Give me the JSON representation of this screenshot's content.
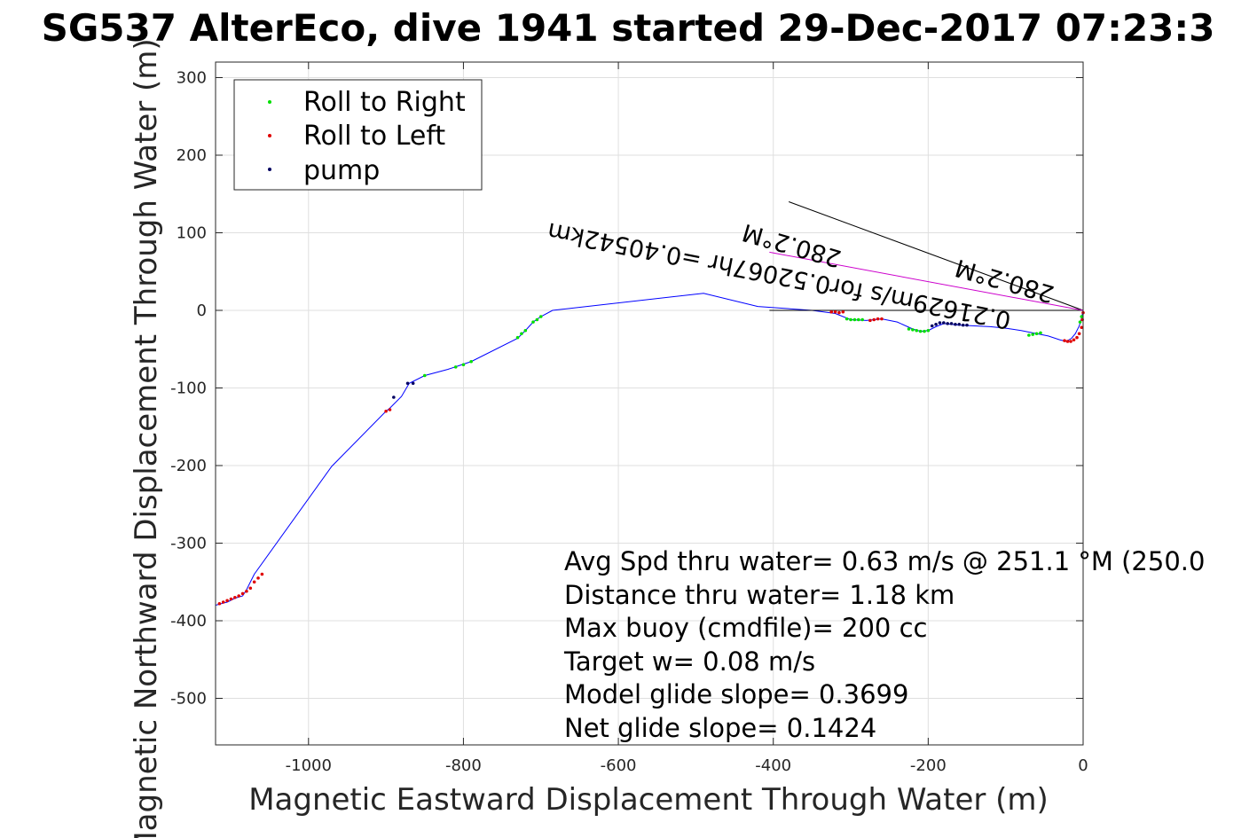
{
  "chart_data": {
    "type": "scatter",
    "title": "SG537 AlterEco, dive 1941 started 29-Dec-2017 07:23:3",
    "xlabel": "Magnetic Eastward Displacement Through Water (m)",
    "ylabel": "Magnetic Northward Displacement Through Water (m)",
    "xlim": [
      -1120,
      0
    ],
    "ylim": [
      -560,
      320
    ],
    "xticks": [
      "-1000",
      "-800",
      "-600",
      "-400",
      "-200",
      "0"
    ],
    "xtick_values": [
      -1000,
      -800,
      -600,
      -400,
      -200,
      0
    ],
    "yticks": [
      "300",
      "200",
      "100",
      "0",
      "-100",
      "-200",
      "-300",
      "-400",
      "-500"
    ],
    "ytick_values": [
      300,
      200,
      100,
      0,
      -100,
      -200,
      -300,
      -400,
      -500
    ],
    "grid": true,
    "legend_position": "top-left",
    "colors": {
      "track": "#0000ff",
      "roll_right": "#00e000",
      "roll_left": "#e00000",
      "pump": "#000060",
      "heading_line": "#cc00cc",
      "vector": "#000000"
    },
    "track": {
      "x": [
        0,
        -2,
        -5,
        -10,
        -15,
        -22,
        -30,
        -45,
        -60,
        -80,
        -100,
        -120,
        -140,
        -160,
        -180,
        -190,
        -200,
        -210,
        -220,
        -240,
        -260,
        -280,
        -300,
        -320,
        -350,
        -420,
        -490,
        -685,
        -700,
        -710,
        -720,
        -730,
        -790,
        -805,
        -820,
        -850,
        -870,
        -880,
        -895,
        -900,
        -970,
        -1070,
        -1075,
        -1080,
        -1085,
        -1095,
        -1105,
        -1120
      ],
      "y": [
        0,
        -10,
        -20,
        -30,
        -36,
        -40,
        -38,
        -33,
        -30,
        -26,
        -23,
        -21,
        -20,
        -19,
        -17,
        -21,
        -26,
        -27,
        -24,
        -15,
        -11,
        -13,
        -12,
        -4,
        0,
        5,
        22,
        0,
        -8,
        -15,
        -26,
        -36,
        -66,
        -71,
        -76,
        -84,
        -94,
        -111,
        -126,
        -130,
        -201,
        -340,
        -350,
        -360,
        -368,
        -371,
        -376,
        -380
      ]
    },
    "series": [
      {
        "name": "Roll to Right",
        "x": [
          -2,
          -4,
          -55,
          -60,
          -65,
          -70,
          -200,
          -205,
          -210,
          -215,
          -220,
          -225,
          -285,
          -290,
          -295,
          -300,
          -305,
          -700,
          -705,
          -710,
          -720,
          -725,
          -730,
          -790,
          -800,
          -810,
          -850
        ],
        "y": [
          -8,
          -15,
          -29,
          -30,
          -31,
          -32,
          -26,
          -27,
          -27,
          -26,
          -25,
          -24,
          -12,
          -12,
          -12,
          -12,
          -11,
          -8,
          -12,
          -15,
          -26,
          -30,
          -35,
          -66,
          -70,
          -73,
          -84
        ]
      },
      {
        "name": "Roll to Left",
        "x": [
          0,
          -1,
          -2,
          -5,
          -8,
          -12,
          -16,
          -20,
          -24,
          -260,
          -265,
          -270,
          -275,
          -310,
          -315,
          -320,
          -325,
          -895,
          -900,
          -1060,
          -1065,
          -1070,
          -1075,
          -1080,
          -1085,
          -1090,
          -1095,
          -1100,
          -1105,
          -1110,
          -1115
        ],
        "y": [
          -3,
          -12,
          -22,
          -30,
          -35,
          -38,
          -40,
          -40,
          -39,
          -11,
          -11,
          -12,
          -13,
          -2,
          -3,
          -2,
          -2,
          -128,
          -130,
          -340,
          -345,
          -350,
          -358,
          -362,
          -365,
          -368,
          -370,
          -372,
          -374,
          -376,
          -378
        ]
      },
      {
        "name": "pump",
        "x": [
          -150,
          -155,
          -160,
          -165,
          -170,
          -175,
          -180,
          -185,
          -190,
          -195,
          -865,
          -872,
          -890
        ],
        "y": [
          -19,
          -19,
          -18,
          -18,
          -17,
          -17,
          -16,
          -16,
          -18,
          -20,
          -94,
          -94,
          -112
        ]
      }
    ],
    "annotations": [
      "Avg Spd thru water=  0.63 m/s @ 251.1 °M (250.0",
      "Distance thru water=  1.18 km",
      "Max buoy (cmdfile)= 200 cc",
      "Target w= 0.08 m/s",
      "Model glide slope= 0.3699",
      "Net glide slope= 0.1424"
    ],
    "heading_labels": [
      "0.21629m/s for0.52067hr =0.40542km",
      "280.2°M",
      "280.2°M"
    ],
    "heading_vectors": [
      {
        "x": [
          0,
          -380
        ],
        "y": [
          0,
          140
        ]
      },
      {
        "x": [
          0,
          -405
        ],
        "y": [
          0,
          0
        ]
      },
      {
        "x": [
          0,
          -405
        ],
        "y": [
          0,
          75
        ]
      }
    ]
  }
}
